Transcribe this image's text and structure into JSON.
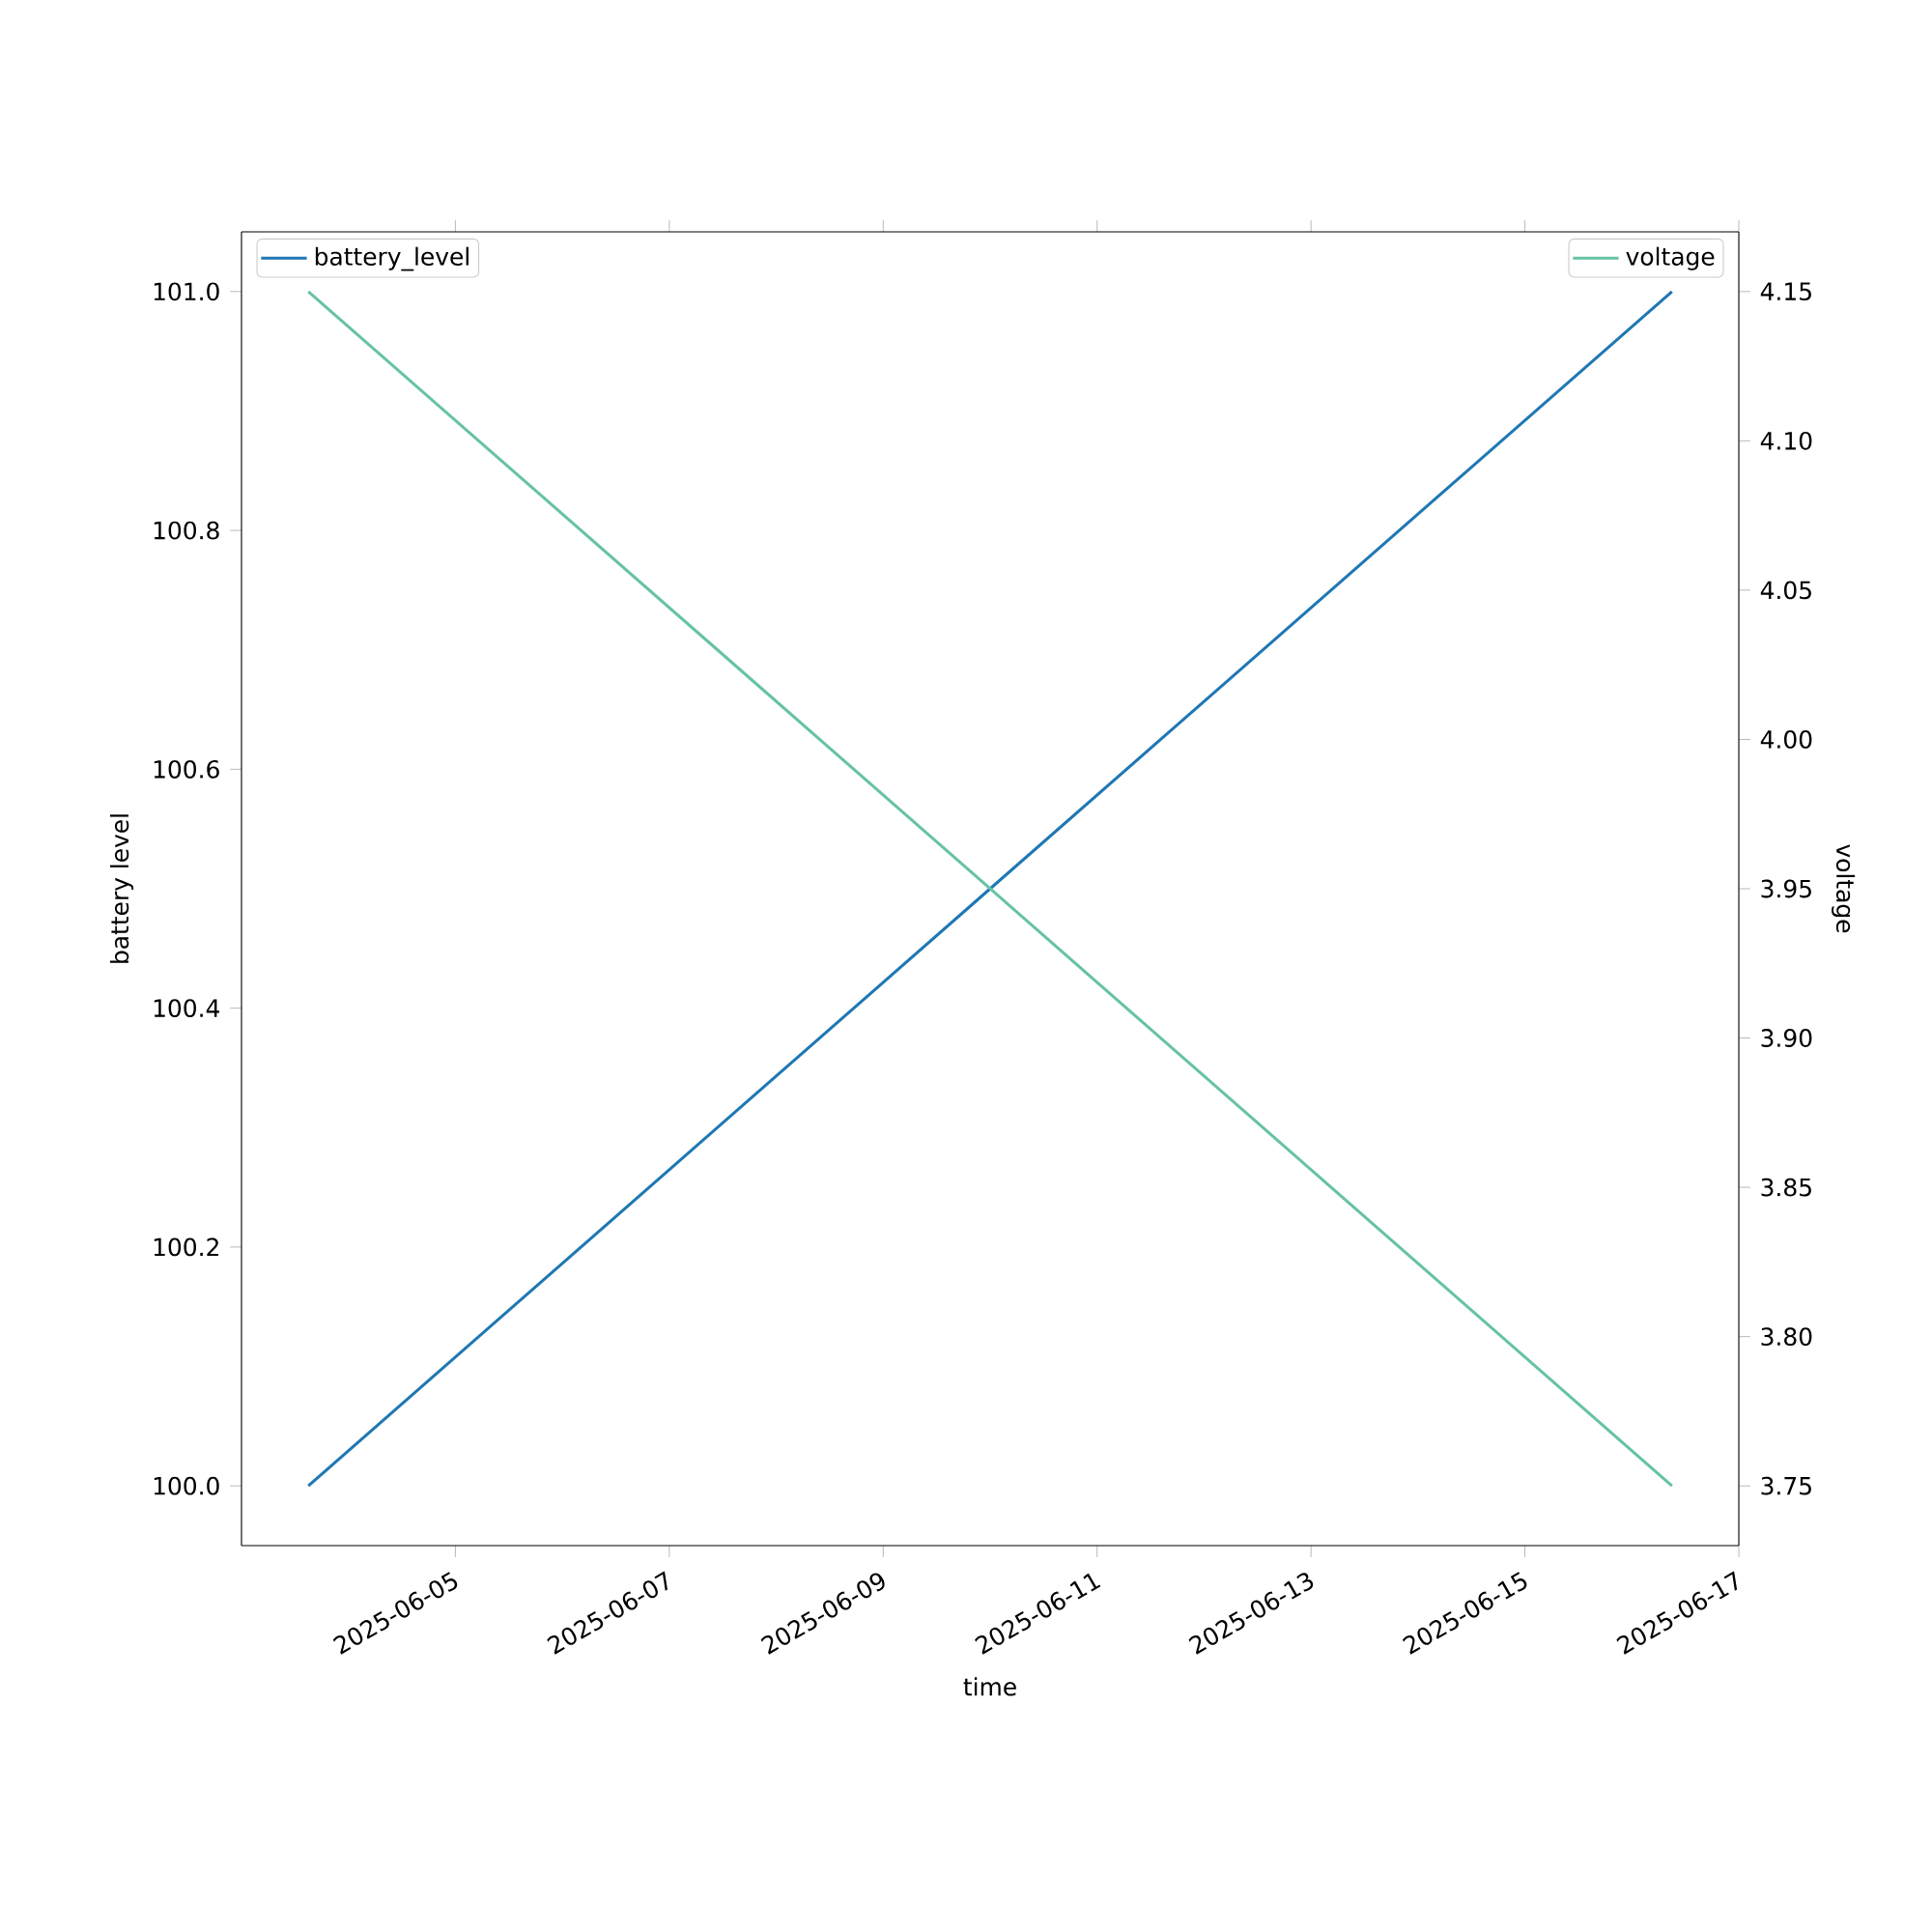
{
  "chart_data": {
    "type": "line",
    "xlabel": "time",
    "ylabel": "battery level",
    "y2label": "voltage",
    "xlim": [
      "2025-06-03",
      "2025-06-17"
    ],
    "xticks": [
      {
        "value": "2025-06-05",
        "label": "2025-06-05"
      },
      {
        "value": "2025-06-07",
        "label": "2025-06-07"
      },
      {
        "value": "2025-06-09",
        "label": "2025-06-09"
      },
      {
        "value": "2025-06-11",
        "label": "2025-06-11"
      },
      {
        "value": "2025-06-13",
        "label": "2025-06-13"
      },
      {
        "value": "2025-06-15",
        "label": "2025-06-15"
      },
      {
        "value": "2025-06-17",
        "label": "2025-06-17"
      }
    ],
    "ylim": [
      99.95,
      101.05
    ],
    "yticks": [
      {
        "value": 100.0,
        "label": "100.0"
      },
      {
        "value": 100.2,
        "label": "100.2"
      },
      {
        "value": 100.4,
        "label": "100.4"
      },
      {
        "value": 100.6,
        "label": "100.6"
      },
      {
        "value": 100.8,
        "label": "100.8"
      },
      {
        "value": 101.0,
        "label": "101.0"
      }
    ],
    "y2lim": [
      3.73,
      4.17
    ],
    "y2ticks": [
      {
        "value": 3.75,
        "label": "3.75"
      },
      {
        "value": 3.8,
        "label": "3.80"
      },
      {
        "value": 3.85,
        "label": "3.85"
      },
      {
        "value": 3.9,
        "label": "3.90"
      },
      {
        "value": 3.95,
        "label": "3.95"
      },
      {
        "value": 4.0,
        "label": "4.00"
      },
      {
        "value": 4.05,
        "label": "4.05"
      },
      {
        "value": 4.1,
        "label": "4.10"
      },
      {
        "value": 4.15,
        "label": "4.15"
      }
    ],
    "x": [
      "2025-06-03T15:00",
      "2025-06-16T09:00"
    ],
    "legend": "top left",
    "grid": false,
    "marker": "none",
    "line_style": "solid",
    "series": [
      {
        "name": "battery_level",
        "color": "#1f77b4",
        "values": [
          100.0,
          101.0
        ]
      },
      {
        "name": "voltage",
        "color": "#66c2a5",
        "values": [
          4.15,
          3.75
        ],
        "axis": "y2"
      }
    ]
  }
}
